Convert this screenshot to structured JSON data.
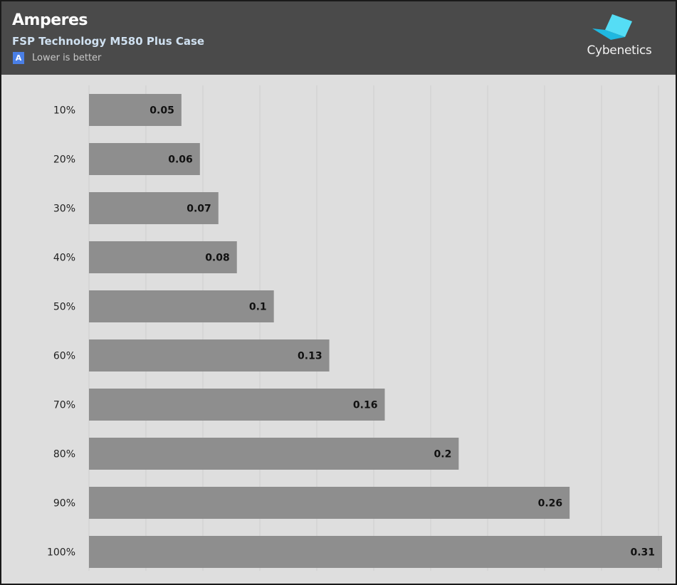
{
  "header": {
    "title": "Amperes",
    "subtitle": "FSP Technology M580 Plus Case",
    "legend_badge": "A",
    "legend_text": "Lower is better",
    "logo_text": "Cybenetics"
  },
  "colors": {
    "header_bg": "#4a4a4a",
    "plot_bg": "#dedede",
    "bar": "#8e8e8e",
    "gridline": "#cfcfcf",
    "badge": "#4a7fe6",
    "logo_cube": "#33ccee"
  },
  "icons": [
    "cybenetics-cube-logo"
  ],
  "chart_data": {
    "type": "bar",
    "orientation": "horizontal",
    "title": "Amperes",
    "subtitle": "FSP Technology M580 Plus Case",
    "categories": [
      "10%",
      "20%",
      "30%",
      "40%",
      "50%",
      "60%",
      "70%",
      "80%",
      "90%",
      "100%"
    ],
    "values": [
      0.05,
      0.06,
      0.07,
      0.08,
      0.1,
      0.13,
      0.16,
      0.2,
      0.26,
      0.31
    ],
    "value_labels": [
      "0.05",
      "0.06",
      "0.07",
      "0.08",
      "0.1",
      "0.13",
      "0.16",
      "0.2",
      "0.26",
      "0.31"
    ],
    "xlim": [
      0,
      0.31
    ],
    "grid": true,
    "legend": "top-left"
  }
}
